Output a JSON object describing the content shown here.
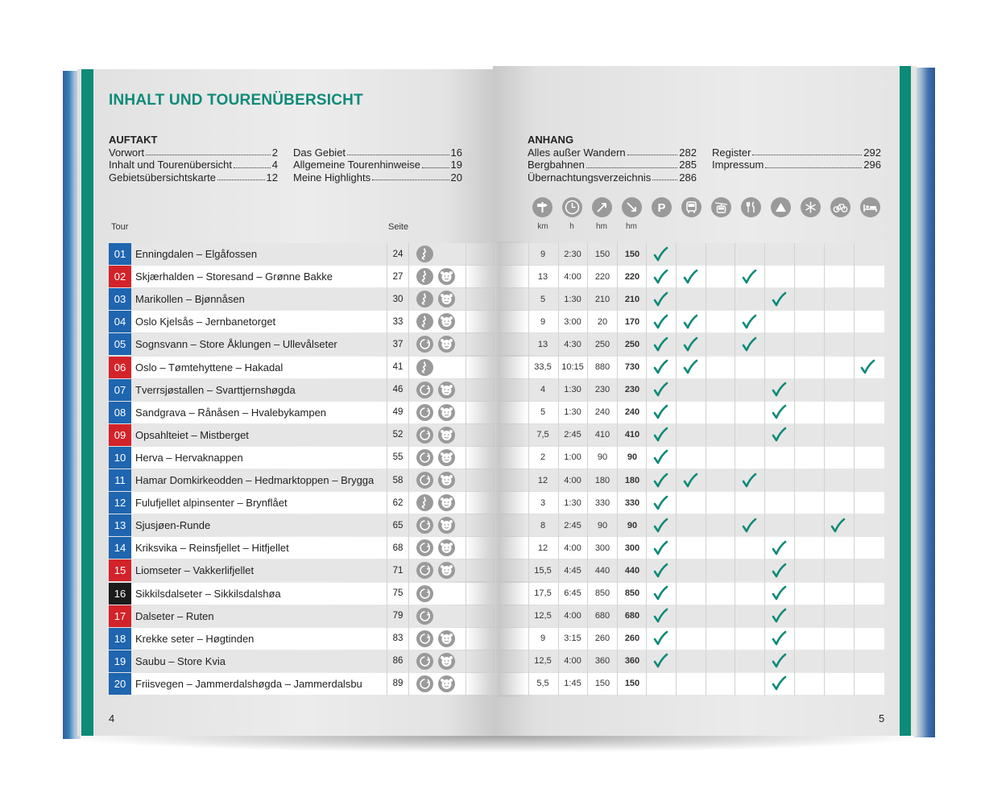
{
  "title": "INHALT UND TOURENÜBERSICHT",
  "auftakt": {
    "heading": "AUFTAKT",
    "col1": [
      {
        "label": "Vorwort",
        "page": "2"
      },
      {
        "label": "Inhalt und Tourenübersicht",
        "page": "4"
      },
      {
        "label": "Gebietsübersichtskarte",
        "page": "12"
      }
    ],
    "col2": [
      {
        "label": "Das Gebiet",
        "page": "16"
      },
      {
        "label": "Allgemeine Tourenhinweise",
        "page": "19"
      },
      {
        "label": "Meine Highlights",
        "page": "20"
      }
    ]
  },
  "anhang": {
    "heading": "ANHANG",
    "col1": [
      {
        "label": "Alles außer Wandern",
        "page": "282"
      },
      {
        "label": "Bergbahnen",
        "page": "285"
      },
      {
        "label": "Übernachtungsverzeichnis",
        "page": "286"
      }
    ],
    "col2": [
      {
        "label": "Register",
        "page": "292"
      },
      {
        "label": "Impressum",
        "page": "296"
      }
    ]
  },
  "table_headers": {
    "tour": "Tour",
    "seite": "Seite"
  },
  "units": [
    "km",
    "h",
    "hm",
    "hm"
  ],
  "header_icons": [
    "signpost-icon",
    "clock-icon",
    "ascent-icon",
    "descent-icon",
    "parking-icon",
    "bus-icon",
    "cable-car-icon",
    "restaurant-icon",
    "summit-icon",
    "winter-icon",
    "bicycle-icon",
    "lodging-icon"
  ],
  "colors": {
    "accent": "#0e8a78",
    "blue": "#1f65b0",
    "red": "#d3232a",
    "black": "#1b1b1b",
    "check": "#0e8a78"
  },
  "tours": [
    {
      "no": "01",
      "color": "blue",
      "name": "Enningdalen – Elgåfossen",
      "page": "24",
      "icons": [
        "route"
      ],
      "km": "9",
      "h": "2:30",
      "up": "150",
      "down": "150",
      "checks": [
        0
      ]
    },
    {
      "no": "02",
      "color": "red",
      "name": "Skjærhalden – Storesand – Grønne Bakke",
      "page": "27",
      "icons": [
        "route",
        "kids"
      ],
      "km": "13",
      "h": "4:00",
      "up": "220",
      "down": "220",
      "checks": [
        0,
        1,
        3
      ]
    },
    {
      "no": "03",
      "color": "blue",
      "name": "Marikollen – Bjønnåsen",
      "page": "30",
      "icons": [
        "route",
        "kids"
      ],
      "km": "5",
      "h": "1:30",
      "up": "210",
      "down": "210",
      "checks": [
        0,
        4
      ]
    },
    {
      "no": "04",
      "color": "blue",
      "name": "Oslo Kjelsås – Jernbanetorget",
      "page": "33",
      "icons": [
        "route",
        "kids"
      ],
      "km": "9",
      "h": "3:00",
      "up": "20",
      "down": "170",
      "checks": [
        0,
        1,
        3
      ]
    },
    {
      "no": "05",
      "color": "blue",
      "name": "Sognsvann – Store Åklungen – Ullevålseter",
      "page": "37",
      "icons": [
        "loop",
        "kids"
      ],
      "km": "13",
      "h": "4:30",
      "up": "250",
      "down": "250",
      "checks": [
        0,
        1,
        3
      ]
    },
    {
      "no": "06",
      "color": "red",
      "name": "Oslo – Tømtehyttene – Hakadal",
      "page": "41",
      "icons": [
        "route"
      ],
      "km": "33,5",
      "h": "10:15",
      "up": "880",
      "down": "730",
      "checks": [
        0,
        1,
        7
      ]
    },
    {
      "no": "07",
      "color": "blue",
      "name": "Tverrsjøstallen – Svarttjernshøgda",
      "page": "46",
      "icons": [
        "loop",
        "kids"
      ],
      "km": "4",
      "h": "1:30",
      "up": "230",
      "down": "230",
      "checks": [
        0,
        4
      ]
    },
    {
      "no": "08",
      "color": "blue",
      "name": "Sandgrava – Rånåsen – Hvalebykampen",
      "page": "49",
      "icons": [
        "loop",
        "kids"
      ],
      "km": "5",
      "h": "1:30",
      "up": "240",
      "down": "240",
      "checks": [
        0,
        4
      ]
    },
    {
      "no": "09",
      "color": "red",
      "name": "Opsahlteiet – Mistberget",
      "page": "52",
      "icons": [
        "loop",
        "kids"
      ],
      "km": "7,5",
      "h": "2:45",
      "up": "410",
      "down": "410",
      "checks": [
        0,
        4
      ]
    },
    {
      "no": "10",
      "color": "blue",
      "name": "Herva – Hervaknappen",
      "page": "55",
      "icons": [
        "loop",
        "kids"
      ],
      "km": "2",
      "h": "1:00",
      "up": "90",
      "down": "90",
      "checks": [
        0
      ]
    },
    {
      "no": "11",
      "color": "blue",
      "name": "Hamar Domkirkeodden – Hedmarktoppen – Brygga",
      "page": "58",
      "icons": [
        "loop",
        "kids"
      ],
      "km": "12",
      "h": "4:00",
      "up": "180",
      "down": "180",
      "checks": [
        0,
        1,
        3
      ]
    },
    {
      "no": "12",
      "color": "blue",
      "name": "Fulufjellet alpinsenter – Brynflået",
      "page": "62",
      "icons": [
        "route",
        "kids"
      ],
      "km": "3",
      "h": "1:30",
      "up": "330",
      "down": "330",
      "checks": [
        0
      ]
    },
    {
      "no": "13",
      "color": "blue",
      "name": "Sjusjøen-Runde",
      "page": "65",
      "icons": [
        "loop",
        "kids"
      ],
      "km": "8",
      "h": "2:45",
      "up": "90",
      "down": "90",
      "checks": [
        0,
        3,
        6
      ]
    },
    {
      "no": "14",
      "color": "blue",
      "name": "Kriksvika – Reinsfjellet – Hitfjellet",
      "page": "68",
      "icons": [
        "loop",
        "kids"
      ],
      "km": "12",
      "h": "4:00",
      "up": "300",
      "down": "300",
      "checks": [
        0,
        4
      ]
    },
    {
      "no": "15",
      "color": "red",
      "name": "Liomseter – Vakkerlifjellet",
      "page": "71",
      "icons": [
        "loop",
        "kids"
      ],
      "km": "15,5",
      "h": "4:45",
      "up": "440",
      "down": "440",
      "checks": [
        0,
        4
      ]
    },
    {
      "no": "16",
      "color": "black",
      "name": "Sikkilsdalseter – Sikkilsdalshøa",
      "page": "75",
      "icons": [
        "loop"
      ],
      "km": "17,5",
      "h": "6:45",
      "up": "850",
      "down": "850",
      "checks": [
        0,
        4
      ]
    },
    {
      "no": "17",
      "color": "red",
      "name": "Dalseter – Ruten",
      "page": "79",
      "icons": [
        "loop"
      ],
      "km": "12,5",
      "h": "4:00",
      "up": "680",
      "down": "680",
      "checks": [
        0,
        4
      ]
    },
    {
      "no": "18",
      "color": "blue",
      "name": "Krekke seter – Høgtinden",
      "page": "83",
      "icons": [
        "loop",
        "kids"
      ],
      "km": "9",
      "h": "3:15",
      "up": "260",
      "down": "260",
      "checks": [
        0,
        4
      ]
    },
    {
      "no": "19",
      "color": "blue",
      "name": "Saubu – Store Kvia",
      "page": "86",
      "icons": [
        "loop",
        "kids"
      ],
      "km": "12,5",
      "h": "4:00",
      "up": "360",
      "down": "360",
      "checks": [
        0,
        4
      ]
    },
    {
      "no": "20",
      "color": "blue",
      "name": "Friisvegen – Jammerdalshøgda – Jammerdalsbu",
      "page": "89",
      "icons": [
        "loop",
        "kids"
      ],
      "km": "5,5",
      "h": "1:45",
      "up": "150",
      "down": "150",
      "checks": [
        4
      ]
    }
  ],
  "page_numbers": {
    "left": "4",
    "right": "5"
  }
}
